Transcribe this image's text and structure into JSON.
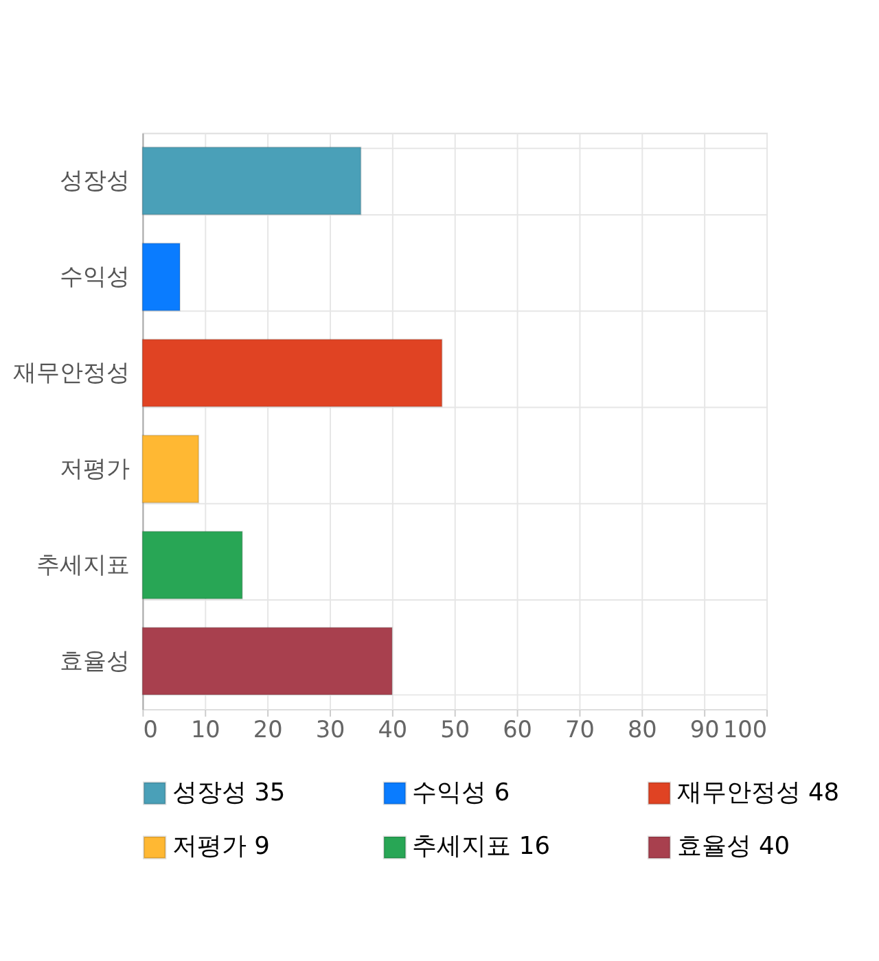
{
  "chart_data": {
    "type": "bar",
    "orientation": "horizontal",
    "categories": [
      "성장성",
      "수익성",
      "재무안정성",
      "저평가",
      "추세지표",
      "효율성"
    ],
    "series": [
      {
        "name": "성장성 35",
        "color": "#4aa0b8",
        "values": [
          35,
          null,
          null,
          null,
          null,
          null
        ]
      },
      {
        "name": "수익성 6",
        "color": "#0a7cff",
        "values": [
          null,
          6,
          null,
          null,
          null,
          null
        ]
      },
      {
        "name": "재무안정성 48",
        "color": "#e04323",
        "values": [
          null,
          null,
          48,
          null,
          null,
          null
        ]
      },
      {
        "name": "저평가 9",
        "color": "#ffb833",
        "values": [
          null,
          null,
          null,
          9,
          null,
          null
        ]
      },
      {
        "name": "추세지표 16",
        "color": "#28a655",
        "values": [
          null,
          null,
          null,
          null,
          16,
          null
        ]
      },
      {
        "name": "효율성 40",
        "color": "#a8404e",
        "values": [
          null,
          null,
          null,
          null,
          null,
          40
        ]
      }
    ],
    "xlim": [
      0,
      100
    ],
    "xticks": [
      0,
      10,
      20,
      30,
      40,
      50,
      60,
      70,
      80,
      90,
      100
    ],
    "grid": true,
    "legend": "bottom"
  }
}
